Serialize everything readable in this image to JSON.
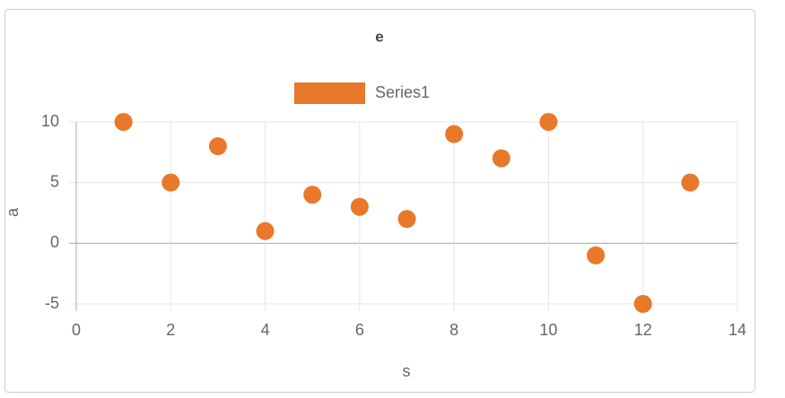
{
  "chart_data": {
    "type": "scatter",
    "title": "e",
    "xlabel": "s",
    "ylabel": "a",
    "series": [
      {
        "name": "Series1",
        "color": "#e8782a",
        "x": [
          1,
          2,
          3,
          4,
          5,
          6,
          7,
          8,
          9,
          10,
          11,
          12,
          13
        ],
        "values": [
          10,
          5,
          8,
          1,
          4,
          3,
          2,
          9,
          7,
          10,
          -1,
          -5,
          5
        ]
      }
    ],
    "xlim": [
      0,
      14
    ],
    "xticks": [
      0,
      2,
      4,
      6,
      8,
      10,
      12,
      14
    ],
    "ylim": [
      -5,
      10
    ],
    "yticks": [
      -5,
      0,
      5,
      10
    ],
    "grid": true,
    "legend": "top"
  }
}
